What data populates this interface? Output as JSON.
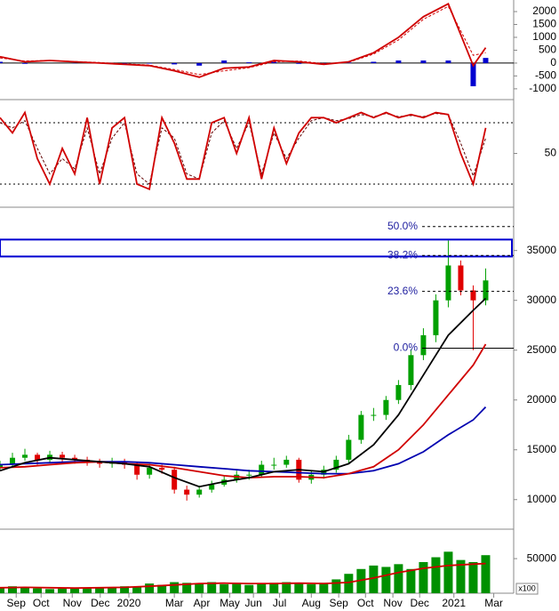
{
  "chart_data": [
    {
      "type": "macd",
      "ylim": [
        -1350,
        2450
      ],
      "yticks": [
        2000,
        1500,
        1000,
        500,
        0,
        -500,
        -1000
      ],
      "zero_line": true,
      "series": [
        {
          "style": "bar",
          "color": "#0000d0",
          "x": [
            0,
            4,
            8,
            12,
            16,
            20,
            24,
            28,
            32,
            36,
            40,
            44,
            48,
            52,
            56,
            60,
            64,
            68,
            72,
            76,
            78
          ],
          "values": [
            50,
            -30,
            0,
            -10,
            -20,
            -20,
            -20,
            -50,
            -100,
            100,
            30,
            50,
            -30,
            -30,
            20,
            50,
            100,
            100,
            100,
            -900,
            200
          ]
        },
        {
          "style": "dashed",
          "color": "#d00000",
          "x": [
            0,
            4,
            8,
            12,
            16,
            20,
            24,
            28,
            32,
            36,
            40,
            44,
            48,
            52,
            56,
            60,
            64,
            68,
            72,
            76,
            78
          ],
          "values": [
            200,
            80,
            100,
            60,
            20,
            -30,
            -80,
            -250,
            -450,
            -300,
            -180,
            50,
            80,
            -20,
            30,
            350,
            900,
            1700,
            2200,
            300,
            400
          ]
        },
        {
          "style": "line",
          "color": "#d00000",
          "x": [
            0,
            4,
            8,
            12,
            16,
            20,
            24,
            28,
            32,
            36,
            40,
            44,
            48,
            52,
            56,
            60,
            64,
            68,
            72,
            76,
            78
          ],
          "values": [
            250,
            50,
            100,
            50,
            0,
            -50,
            -100,
            -300,
            -550,
            -200,
            -150,
            100,
            50,
            -50,
            50,
            400,
            1000,
            1800,
            2300,
            -100,
            600
          ]
        }
      ]
    },
    {
      "type": "stochastic",
      "ylim": [
        0,
        100
      ],
      "yticks": [
        50
      ],
      "hlines": [
        20,
        80
      ],
      "series": [
        {
          "style": "dashed",
          "color": "#600000",
          "x": [
            0,
            2,
            4,
            6,
            8,
            10,
            12,
            14,
            16,
            18,
            20,
            22,
            24,
            26,
            28,
            30,
            32,
            34,
            36,
            38,
            40,
            42,
            44,
            46,
            48,
            50,
            52,
            54,
            56,
            58,
            60,
            62,
            64,
            66,
            68,
            70,
            72,
            74,
            76,
            78
          ],
          "values": [
            80,
            75,
            82,
            55,
            30,
            45,
            35,
            75,
            30,
            65,
            80,
            30,
            20,
            75,
            65,
            30,
            25,
            70,
            82,
            55,
            80,
            30,
            70,
            45,
            65,
            82,
            85,
            82,
            84,
            88,
            86,
            89,
            86,
            87,
            86,
            89,
            88,
            60,
            28,
            65
          ]
        },
        {
          "style": "line",
          "color": "#d00000",
          "x": [
            0,
            2,
            4,
            6,
            8,
            10,
            12,
            14,
            16,
            18,
            20,
            22,
            24,
            26,
            28,
            30,
            32,
            34,
            36,
            38,
            40,
            42,
            44,
            46,
            48,
            50,
            52,
            54,
            56,
            58,
            60,
            62,
            64,
            66,
            68,
            70,
            72,
            74,
            76,
            78
          ],
          "values": [
            85,
            70,
            90,
            45,
            20,
            55,
            30,
            85,
            20,
            75,
            85,
            20,
            15,
            85,
            60,
            25,
            25,
            80,
            85,
            50,
            85,
            25,
            75,
            40,
            70,
            85,
            85,
            80,
            85,
            90,
            85,
            90,
            85,
            88,
            85,
            90,
            88,
            50,
            20,
            75
          ]
        }
      ]
    },
    {
      "type": "candlestick",
      "ylim": [
        7300,
        38900
      ],
      "yticks": [
        35000,
        30000,
        25000,
        20000,
        15000,
        10000
      ],
      "up_color": "#00a000",
      "down_color": "#e00000",
      "x": [
        0,
        2,
        4,
        6,
        8,
        10,
        12,
        14,
        16,
        18,
        20,
        22,
        24,
        26,
        28,
        30,
        32,
        34,
        36,
        38,
        40,
        42,
        44,
        46,
        48,
        50,
        52,
        54,
        56,
        58,
        60,
        62,
        64,
        66,
        68,
        70,
        72,
        74,
        76,
        78
      ],
      "open": [
        13200,
        13500,
        14200,
        14500,
        14000,
        14500,
        14200,
        14000,
        13800,
        13600,
        13800,
        13500,
        12500,
        13200,
        13000,
        11000,
        10500,
        11000,
        11500,
        12000,
        12500,
        12500,
        13500,
        13500,
        14000,
        12000,
        12500,
        13000,
        14000,
        16000,
        18500,
        18500,
        20000,
        21500,
        24500,
        26500,
        30000,
        33500,
        31000,
        30000
      ],
      "high": [
        13900,
        14700,
        15100,
        14700,
        14900,
        14800,
        14500,
        14300,
        14100,
        14200,
        14100,
        13700,
        13600,
        13500,
        13300,
        11400,
        11400,
        11900,
        12400,
        12900,
        13000,
        13900,
        14200,
        14400,
        14200,
        12900,
        13400,
        14400,
        16500,
        18900,
        19200,
        20400,
        22000,
        25100,
        27200,
        30600,
        36000,
        34000,
        31500,
        33200
      ],
      "low": [
        12900,
        13200,
        13900,
        13500,
        13700,
        13800,
        13600,
        13400,
        13200,
        13200,
        13100,
        12000,
        12100,
        12600,
        10600,
        9900,
        10200,
        10700,
        11300,
        11700,
        12000,
        12200,
        13000,
        13200,
        11700,
        11600,
        12100,
        12700,
        13600,
        15600,
        17900,
        18000,
        19600,
        21000,
        24000,
        25800,
        29300,
        30500,
        25000,
        29500
      ],
      "close": [
        13500,
        14200,
        14500,
        14000,
        14500,
        14200,
        14000,
        13800,
        13600,
        13800,
        13500,
        12500,
        13200,
        13000,
        11000,
        10500,
        11000,
        11500,
        12000,
        12500,
        12500,
        13500,
        13500,
        14000,
        12000,
        12500,
        13000,
        14000,
        16000,
        18500,
        18500,
        20000,
        21500,
        24500,
        26500,
        30000,
        33500,
        31000,
        30000,
        32000
      ],
      "band": [
        34400,
        36100
      ],
      "band_color": "#0000d0",
      "fib_levels": [
        {
          "value": 37400,
          "label": "50.0%"
        },
        {
          "value": 34500,
          "label": "38.2%"
        },
        {
          "value": 30900,
          "label": "23.6%"
        },
        {
          "value": 25200,
          "label": "0.0%"
        }
      ],
      "series": [
        {
          "style": "line",
          "color": "#0000b0",
          "x": [
            0,
            4,
            8,
            12,
            16,
            20,
            24,
            28,
            32,
            36,
            40,
            44,
            48,
            52,
            56,
            60,
            64,
            68,
            72,
            76,
            78
          ],
          "values": [
            13500,
            13600,
            13700,
            13800,
            13800,
            13800,
            13700,
            13500,
            13300,
            13100,
            12900,
            12800,
            12700,
            12600,
            12600,
            12900,
            13600,
            14800,
            16500,
            18000,
            19300
          ]
        },
        {
          "style": "line",
          "color": "#d00000",
          "x": [
            0,
            4,
            8,
            12,
            16,
            20,
            24,
            28,
            32,
            36,
            40,
            44,
            48,
            52,
            56,
            60,
            64,
            68,
            72,
            76,
            78
          ],
          "values": [
            13200,
            13300,
            13500,
            13700,
            13800,
            13600,
            13500,
            13200,
            12800,
            12400,
            12200,
            12300,
            12300,
            12200,
            12600,
            13300,
            15000,
            17500,
            20500,
            23500,
            25600
          ]
        },
        {
          "style": "line",
          "color": "#000000",
          "x": [
            0,
            4,
            8,
            12,
            16,
            20,
            24,
            28,
            32,
            36,
            40,
            44,
            48,
            52,
            56,
            60,
            64,
            68,
            72,
            76,
            78
          ],
          "values": [
            12900,
            13700,
            14200,
            14000,
            13800,
            13600,
            13300,
            12200,
            11300,
            11800,
            12200,
            12800,
            13000,
            12800,
            13600,
            15500,
            18500,
            22500,
            26500,
            29000,
            30200
          ]
        }
      ]
    },
    {
      "type": "volume",
      "ylim": [
        0,
        90000
      ],
      "yticks": [
        50000
      ],
      "unit_label": "x100",
      "xlim": [
        0,
        82.5
      ],
      "xticks": [
        {
          "value": 2.6,
          "label": "Sep"
        },
        {
          "value": 6.6,
          "label": "Oct"
        },
        {
          "value": 11.6,
          "label": "Nov"
        },
        {
          "value": 16.1,
          "label": "Dec"
        },
        {
          "value": 20.7,
          "label": "2020"
        },
        {
          "value": 28,
          "label": "Mar"
        },
        {
          "value": 32.4,
          "label": "Apr"
        },
        {
          "value": 36.9,
          "label": "May"
        },
        {
          "value": 40.7,
          "label": "Jun"
        },
        {
          "value": 44.9,
          "label": "Jul"
        },
        {
          "value": 50,
          "label": "Aug"
        },
        {
          "value": 54.4,
          "label": "Sep"
        },
        {
          "value": 58.7,
          "label": "Oct"
        },
        {
          "value": 63.1,
          "label": "Nov"
        },
        {
          "value": 67.4,
          "label": "Dec"
        },
        {
          "value": 72.9,
          "label": "2021"
        },
        {
          "value": 79.3,
          "label": "Mar"
        }
      ],
      "series": [
        {
          "style": "bar",
          "color": "#009000",
          "x": [
            0,
            2,
            4,
            6,
            8,
            10,
            12,
            14,
            16,
            18,
            20,
            22,
            24,
            26,
            28,
            30,
            32,
            34,
            36,
            38,
            40,
            42,
            44,
            46,
            48,
            50,
            52,
            54,
            56,
            58,
            60,
            62,
            64,
            66,
            68,
            70,
            72,
            74,
            76,
            78
          ],
          "values": [
            8000,
            10000,
            9000,
            7000,
            6000,
            7000,
            8000,
            7000,
            9000,
            8000,
            10000,
            9000,
            14000,
            12000,
            16000,
            15000,
            14000,
            16000,
            13000,
            15000,
            12000,
            14000,
            15000,
            16000,
            14000,
            13000,
            15000,
            20000,
            28000,
            35000,
            40000,
            38000,
            42000,
            35000,
            45000,
            52000,
            60000,
            48000,
            45000,
            55000
          ]
        },
        {
          "style": "line",
          "color": "#d00000",
          "x": [
            0,
            4,
            8,
            12,
            16,
            20,
            24,
            28,
            32,
            36,
            40,
            44,
            48,
            52,
            56,
            60,
            64,
            68,
            72,
            76,
            78
          ],
          "values": [
            8000,
            8500,
            8000,
            7500,
            8000,
            8500,
            10000,
            12000,
            14000,
            14500,
            14000,
            14000,
            14500,
            14000,
            15500,
            22000,
            30000,
            36000,
            40000,
            42000,
            43000
          ]
        }
      ]
    }
  ]
}
